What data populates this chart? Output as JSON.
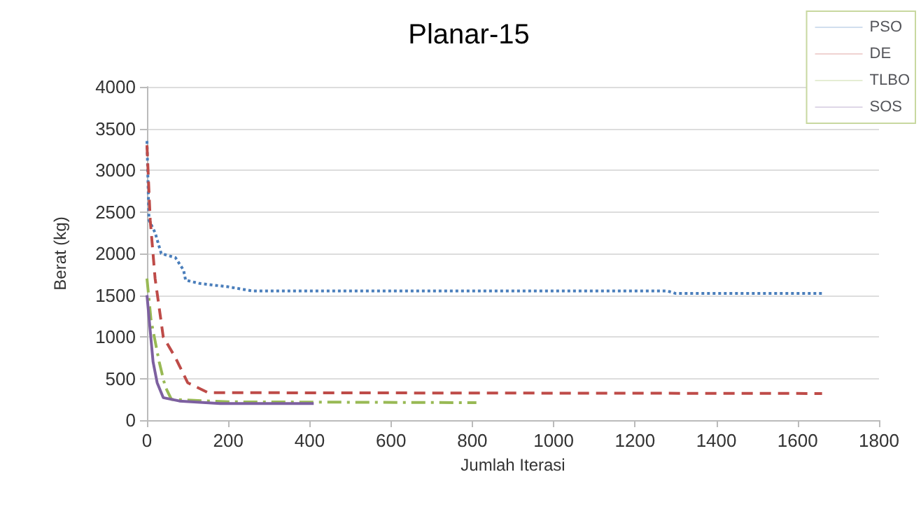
{
  "chart_data": {
    "type": "line",
    "title": "Planar-15",
    "xlabel": "Jumlah Iterasi",
    "ylabel": "Berat (kg)",
    "xlim": [
      0,
      1800
    ],
    "xticks": [
      0,
      200,
      400,
      600,
      800,
      1000,
      1200,
      1400,
      1600,
      1800
    ],
    "ylim": [
      0,
      4000
    ],
    "yticks": [
      0,
      500,
      1000,
      1500,
      2000,
      2500,
      3000,
      3500,
      4000
    ],
    "grid": "y",
    "legend": "top right",
    "marker": "none",
    "series": [
      {
        "name": "PSO",
        "color": "#4a7ebb",
        "line_style": "dotted",
        "x": [
          0,
          5,
          20,
          35,
          70,
          90,
          95,
          130,
          200,
          260,
          1280,
          1300,
          1660
        ],
        "values": [
          3350,
          2400,
          2250,
          2000,
          1950,
          1800,
          1680,
          1640,
          1600,
          1550,
          1550,
          1520,
          1520
        ]
      },
      {
        "name": "DE",
        "color": "#be4b48",
        "line_style": "dashed",
        "x": [
          0,
          8,
          20,
          40,
          70,
          100,
          150,
          1660
        ],
        "values": [
          3300,
          2400,
          1700,
          1000,
          750,
          450,
          330,
          320
        ]
      },
      {
        "name": "TLBO",
        "color": "#98b954",
        "line_style": "dashdot",
        "x": [
          0,
          10,
          30,
          45,
          60,
          200,
          810
        ],
        "values": [
          1700,
          1200,
          700,
          400,
          250,
          220,
          210
        ]
      },
      {
        "name": "SOS",
        "color": "#7d60a0",
        "line_style": "solid",
        "x": [
          0,
          15,
          25,
          40,
          80,
          180,
          410
        ],
        "values": [
          1500,
          700,
          450,
          270,
          230,
          200,
          200
        ]
      }
    ]
  }
}
